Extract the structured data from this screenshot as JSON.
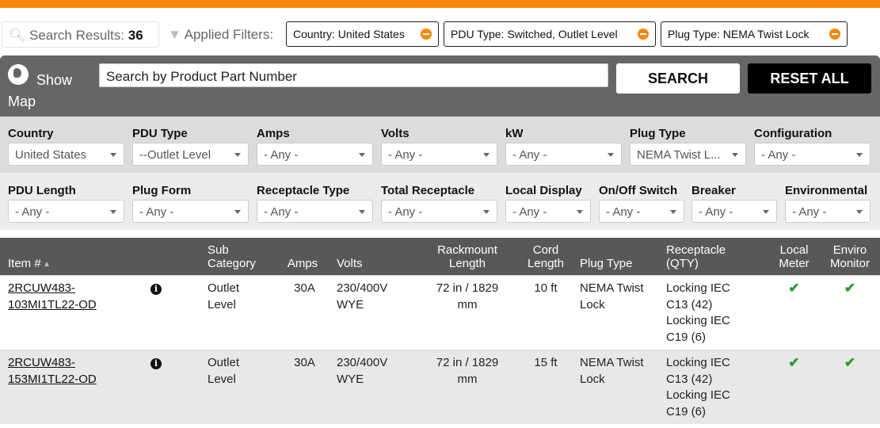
{
  "summary": {
    "results_label": "Search Results:",
    "results_count": "36",
    "applied_label": "Applied Filters:"
  },
  "chips": [
    "Country: United States",
    "PDU Type: Switched, Outlet Level",
    "Plug Type: NEMA Twist Lock"
  ],
  "panel": {
    "show_map": "Show Map",
    "search_placeholder": "Search by Product Part Number",
    "search_button": "SEARCH",
    "reset_button": "RESET ALL"
  },
  "filters_row1": [
    {
      "label": "Country",
      "value": "United States"
    },
    {
      "label": "PDU Type",
      "value": "--Outlet Level"
    },
    {
      "label": "Amps",
      "value": "- Any -"
    },
    {
      "label": "Volts",
      "value": "- Any -"
    },
    {
      "label": "kW",
      "value": "- Any -"
    },
    {
      "label": "Plug Type",
      "value": "NEMA Twist L..."
    },
    {
      "label": "Configuration",
      "value": "- Any -"
    }
  ],
  "filters_row2": [
    {
      "label": "PDU Length",
      "value": "- Any -"
    },
    {
      "label": "Plug Form",
      "value": "- Any -"
    },
    {
      "label": "Receptacle Type",
      "value": "- Any -"
    },
    {
      "label": "Total Receptacle",
      "value": "- Any -"
    },
    {
      "label": "Local Display",
      "value": "- Any -"
    },
    {
      "label": "On/Off Switch",
      "value": "- Any -"
    },
    {
      "label": "Breaker",
      "value": "- Any -"
    },
    {
      "label": "Environmental",
      "value": "- Any -"
    }
  ],
  "table": {
    "headers": [
      "Item #",
      "Sub Category",
      "Amps",
      "Volts",
      "Rackmount Length",
      "Cord Length",
      "Plug Type",
      "Receptacle (QTY)",
      "Local Meter",
      "Enviro Monitor"
    ],
    "rows": [
      {
        "item": "2RCUW483-103MI1TL22-OD",
        "sub": "Outlet Level",
        "amps": "30A",
        "volts": "230/400V WYE",
        "rack": "72 in / 1829 mm",
        "cord": "10 ft",
        "plug": "NEMA Twist Lock",
        "receptacle": "Locking IEC C13 (42) Locking IEC C19 (6)",
        "meter": true,
        "enviro": true
      },
      {
        "item": "2RCUW483-153MI1TL22-OD",
        "sub": "Outlet Level",
        "amps": "30A",
        "volts": "230/400V WYE",
        "rack": "72 in / 1829 mm",
        "cord": "15 ft",
        "plug": "NEMA Twist Lock",
        "receptacle": "Locking IEC C13 (42) Locking IEC C19 (6)",
        "meter": true,
        "enviro": true
      }
    ]
  },
  "colors": {
    "accent": "#f7870f",
    "panel": "#666666",
    "table_header": "#58585a",
    "check": "#2a9d2a"
  }
}
